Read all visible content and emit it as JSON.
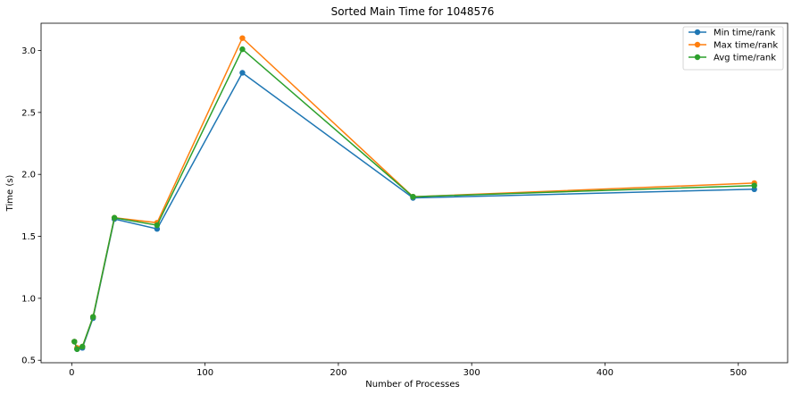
{
  "chart_data": {
    "type": "line",
    "title": "Sorted Main Time for 1048576",
    "xlabel": "Number of Processes",
    "ylabel": "Time (s)",
    "xlim": [
      -23,
      537
    ],
    "ylim": [
      0.48,
      3.22
    ],
    "xticks": [
      0,
      100,
      200,
      300,
      400,
      500
    ],
    "yticks": [
      0.5,
      1.0,
      1.5,
      2.0,
      2.5,
      3.0
    ],
    "grid": false,
    "legend": "top-right",
    "x": [
      2,
      4,
      8,
      16,
      32,
      64,
      128,
      256,
      512
    ],
    "series": [
      {
        "name": "Min time/rank",
        "color": "#1f77b4",
        "values": [
          0.65,
          0.59,
          0.6,
          0.84,
          1.64,
          1.56,
          2.82,
          1.81,
          1.88
        ]
      },
      {
        "name": "Max time/rank",
        "color": "#ff7f0e",
        "values": [
          0.65,
          0.6,
          0.61,
          0.85,
          1.65,
          1.61,
          3.1,
          1.82,
          1.93
        ]
      },
      {
        "name": "Avg time/rank",
        "color": "#2ca02c",
        "values": [
          0.65,
          0.59,
          0.61,
          0.85,
          1.65,
          1.59,
          3.01,
          1.82,
          1.91
        ]
      }
    ]
  }
}
